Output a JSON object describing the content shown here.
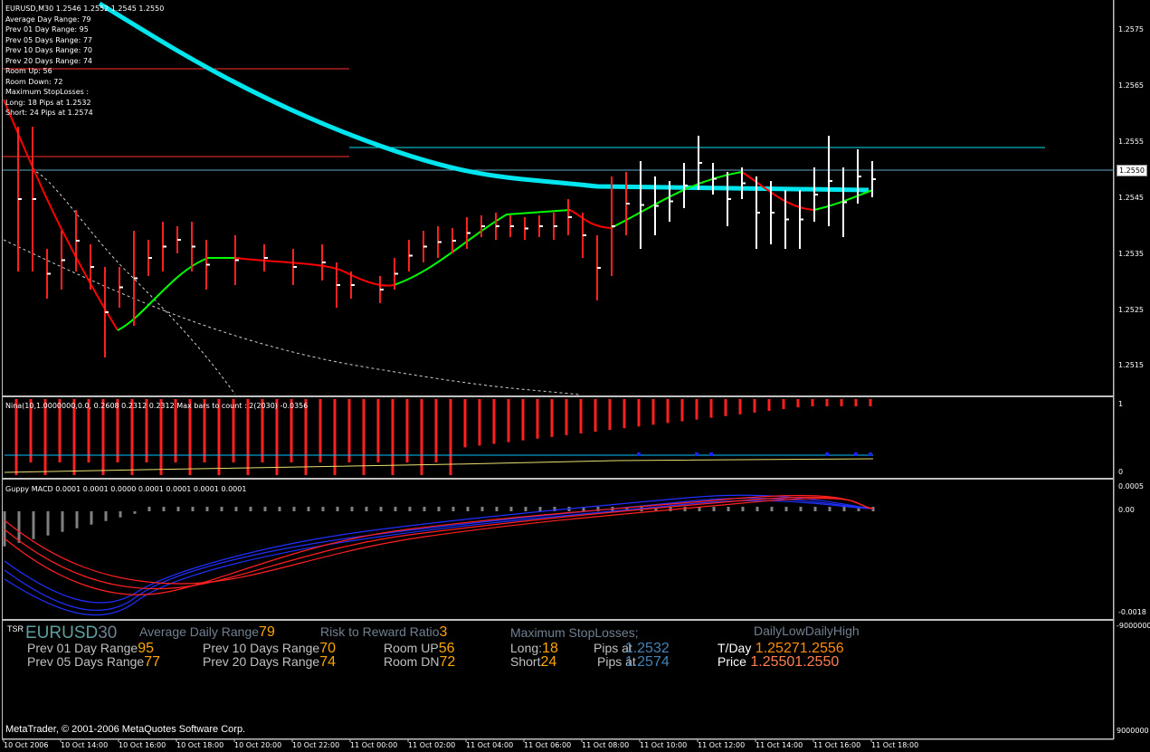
{
  "main": {
    "symbol_header": "EURUSD,M30  1.2546 1.2552 1.2545 1.2550",
    "info_lines": [
      "Average Day  Range: 79",
      "Prev 01  Day  Range: 95",
      "Prev 05  Days Range: 77",
      "Prev 10  Days Range: 70",
      "Prev 20  Days Range: 74",
      "Room Up:    56",
      "Room Down: 72",
      "Maximum StopLosses :",
      "Long:  18 Pips at 1.2532",
      "Short: 24 Pips at 1.2574"
    ],
    "price_axis": [
      "1.2575",
      "1.2565",
      "1.2555",
      "1.2545",
      "1.2535",
      "1.2525",
      "1.2515"
    ],
    "current_price": "1.2550"
  },
  "nina": {
    "title": "Nina(10,1.0000000,0.0, 0.2608 0.2312 0.2312  Max bars to count : 2(2030) -0.0356",
    "axis": [
      "1",
      "0"
    ]
  },
  "macd": {
    "title": "Guppy MACD 0.0001 0.0001 0.0000 0.0001 0.0001 0.0001 0.0001",
    "axis": [
      "0.0005",
      "0.00",
      "-0.0018"
    ]
  },
  "tsr": {
    "tag": "TSR",
    "symbol_a": "EURUSD",
    "symbol_b": "30",
    "avg_daily_range_label": "Average Daily Range",
    "avg_daily_range_value": "79",
    "risk_reward_label": "Risk to Reward Ratio",
    "risk_reward_value": "3",
    "max_stoplosses_label": "Maximum StopLosses;",
    "daily_low_high_label": "DailyLowDailyHigh",
    "prev01_label": "Prev 01 Day Range",
    "prev01_value": "95",
    "prev05_label": "Prev 05 Days Range",
    "prev05_value": "77",
    "prev10_label": "Prev 10 Days Range",
    "prev10_value": "70",
    "prev20_label": "Prev 20 Days Range",
    "prev20_value": "74",
    "room_up_label": "Room UP",
    "room_up_value": "56",
    "room_dn_label": "Room DN",
    "room_dn_value": "72",
    "long_label": "Long:",
    "long_value": "18",
    "short_label": "Short",
    "short_value": "24",
    "pips_at_label": "Pips at",
    "pips_long_value": "1.2532",
    "pips_short_value": "1.2574",
    "tday_label": "T/Day",
    "tday_value": "1.25271.2556",
    "price_label": "Price",
    "price_value": "1.25501.2550",
    "axis": [
      "-9000000",
      "9000000"
    ]
  },
  "footer": "MetaTrader, © 2001-2006 MetaQuotes Software Corp.",
  "time_axis": [
    "10 Oct 2006",
    "10 Oct 14:00",
    "10 Oct 16:00",
    "10 Oct 18:00",
    "10 Oct 20:00",
    "10 Oct 22:00",
    "11 Oct 00:00",
    "11 Oct 02:00",
    "11 Oct 04:00",
    "11 Oct 06:00",
    "11 Oct 08:00",
    "11 Oct 10:00",
    "11 Oct 12:00",
    "11 Oct 14:00",
    "11 Oct 16:00",
    "11 Oct 18:00"
  ],
  "colors": {
    "ma_thick": "#00e5ee",
    "ma_up": "#00ff00",
    "ma_down": "#ff0000",
    "tsr_value": "#ffa500",
    "tsr_blue": "#4682b4"
  }
}
